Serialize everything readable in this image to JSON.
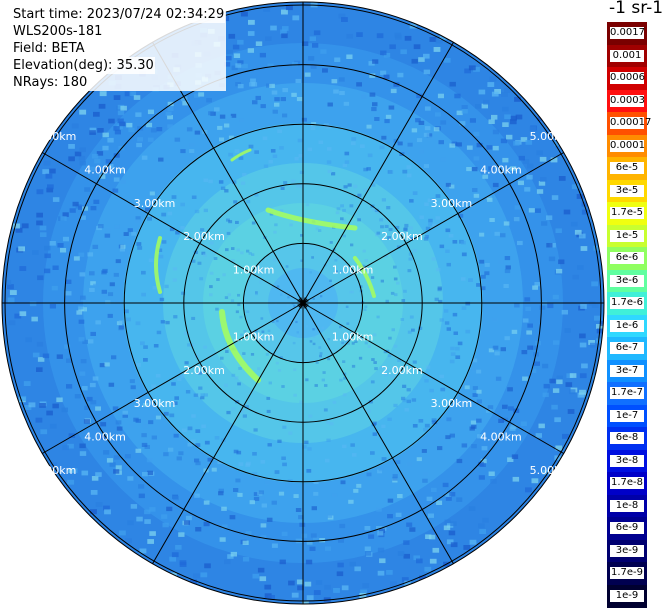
{
  "info": {
    "start_time": "Start time: 2023/07/24 02:34:29",
    "instrument": "WLS200s-181",
    "field": "Field: BETA",
    "elevation": "Elevation(deg): 35.30",
    "nrays": "NRays: 180"
  },
  "units": "-1 sr-1",
  "range_rings": {
    "ring_values_km": [
      1,
      2,
      3,
      4,
      5
    ],
    "labels": [
      "1.00km",
      "2.00km",
      "3.00km",
      "4.00km",
      "5.00km"
    ],
    "max_range_km": 5.05,
    "spoke_count": 12
  },
  "colorbar": {
    "labels": [
      "0.0017",
      "0.001",
      "0.0006",
      "0.0003",
      "0.00017",
      "0.0001",
      "6e-5",
      "3e-5",
      "1.7e-5",
      "1e-5",
      "6e-6",
      "3e-6",
      "1.7e-6",
      "1e-6",
      "6e-7",
      "3e-7",
      "1.7e-7",
      "1e-7",
      "6e-8",
      "3e-8",
      "1.7e-8",
      "1e-8",
      "6e-9",
      "3e-9",
      "1.7e-9",
      "1e-9"
    ],
    "colors": [
      "#7a0000",
      "#a00000",
      "#d00000",
      "#ff1010",
      "#ff5000",
      "#ff8c00",
      "#ffb400",
      "#ffd800",
      "#f0ff10",
      "#c8ff30",
      "#90ff60",
      "#60ffa0",
      "#40f0d8",
      "#30d8ff",
      "#20b8ff",
      "#1090ff",
      "#1070ff",
      "#0050ff",
      "#0030f0",
      "#0010e0",
      "#0000c8",
      "#0000a8",
      "#000090",
      "#000070",
      "#000050",
      "#000030"
    ]
  },
  "palette": {
    "far": "#2a7fe0",
    "mid": "#3aa2f0",
    "near": "#5cd6e0",
    "center": "#4fb6f2",
    "filament": "#a8ff5a",
    "filament_bright": "#d8ff60"
  }
}
